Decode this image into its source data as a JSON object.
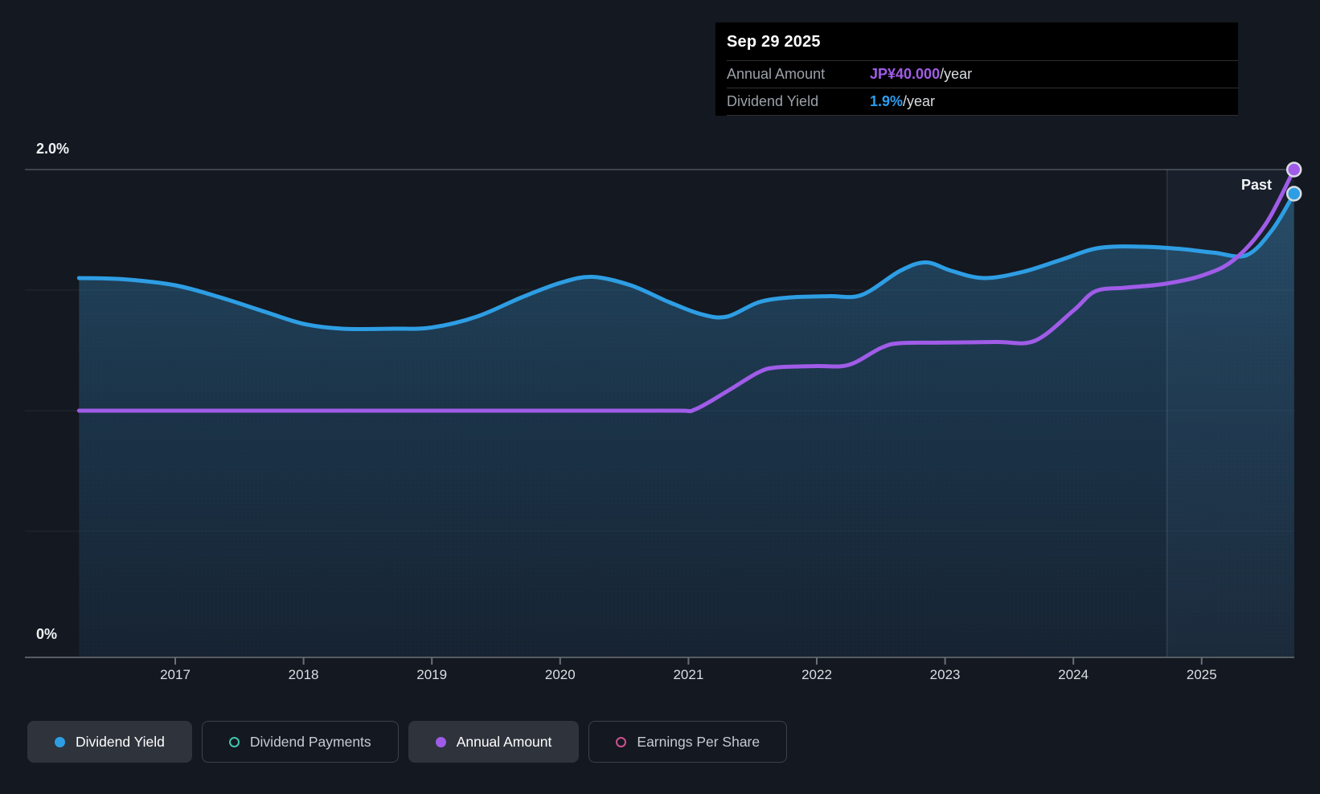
{
  "tooltip": {
    "date": "Sep 29 2025",
    "rows": [
      {
        "label": "Annual Amount",
        "value": "JP¥40.000",
        "suffix": "/year",
        "value_color": "#a25ce8"
      },
      {
        "label": "Dividend Yield",
        "value": "1.9%",
        "suffix": "/year",
        "value_color": "#2b9df0"
      }
    ]
  },
  "axes": {
    "y_top_label": "2.0%",
    "y_bottom_label": "0%",
    "x_ticks": [
      "2017",
      "2018",
      "2019",
      "2020",
      "2021",
      "2022",
      "2023",
      "2024",
      "2025"
    ]
  },
  "past_label": "Past",
  "legend": [
    {
      "label": "Dividend Yield",
      "color": "#2e9ee4",
      "style": "filled",
      "active": true
    },
    {
      "label": "Dividend Payments",
      "color": "#41c4ae",
      "style": "ring",
      "active": false
    },
    {
      "label": "Annual Amount",
      "color": "#a05ce8",
      "style": "filled",
      "active": true
    },
    {
      "label": "Earnings Per Share",
      "color": "#cd5190",
      "style": "ring",
      "active": false
    }
  ],
  "chart_data": {
    "type": "area+line",
    "title": "Dividend yield and annual amount history",
    "x_domain_years": [
      2016.25,
      2025.72
    ],
    "yield_axis": {
      "min": 0,
      "max": 2.0,
      "unit": "%",
      "gridline_step": 0.5,
      "labels": [
        "0%",
        "2.0%"
      ]
    },
    "amount_axis": {
      "min": 0,
      "max": 40,
      "unit": "JP¥/year"
    },
    "past_divider_year": 2024.73,
    "grid": true,
    "legend_position": "bottom",
    "series": [
      {
        "name": "Dividend Yield",
        "axis": "yield",
        "unit": "%",
        "color": "#2e9ee4",
        "area_fill": true,
        "end_value": 1.9,
        "points": [
          [
            2016.25,
            1.55
          ],
          [
            2016.6,
            1.545
          ],
          [
            2017.0,
            1.52
          ],
          [
            2017.35,
            1.47
          ],
          [
            2017.7,
            1.41
          ],
          [
            2018.0,
            1.36
          ],
          [
            2018.3,
            1.34
          ],
          [
            2018.7,
            1.34
          ],
          [
            2019.0,
            1.345
          ],
          [
            2019.35,
            1.39
          ],
          [
            2019.7,
            1.47
          ],
          [
            2020.0,
            1.53
          ],
          [
            2020.25,
            1.555
          ],
          [
            2020.55,
            1.52
          ],
          [
            2020.85,
            1.45
          ],
          [
            2021.1,
            1.4
          ],
          [
            2021.3,
            1.39
          ],
          [
            2021.55,
            1.45
          ],
          [
            2021.8,
            1.47
          ],
          [
            2022.1,
            1.475
          ],
          [
            2022.35,
            1.48
          ],
          [
            2022.65,
            1.58
          ],
          [
            2022.85,
            1.615
          ],
          [
            2023.05,
            1.58
          ],
          [
            2023.3,
            1.55
          ],
          [
            2023.6,
            1.575
          ],
          [
            2023.9,
            1.625
          ],
          [
            2024.2,
            1.675
          ],
          [
            2024.55,
            1.68
          ],
          [
            2024.85,
            1.67
          ],
          [
            2025.1,
            1.655
          ],
          [
            2025.35,
            1.645
          ],
          [
            2025.55,
            1.75
          ],
          [
            2025.72,
            1.9
          ]
        ]
      },
      {
        "name": "Annual Amount",
        "axis": "amount",
        "unit": "JP¥",
        "color": "#a05ce8",
        "area_fill": false,
        "end_value": 40,
        "points": [
          [
            2016.25,
            20
          ],
          [
            2017.0,
            20
          ],
          [
            2018.0,
            20
          ],
          [
            2019.0,
            20
          ],
          [
            2020.0,
            20
          ],
          [
            2020.9,
            20
          ],
          [
            2021.05,
            20.1
          ],
          [
            2021.3,
            21.6
          ],
          [
            2021.55,
            23.2
          ],
          [
            2021.7,
            23.6
          ],
          [
            2022.0,
            23.7
          ],
          [
            2022.25,
            23.8
          ],
          [
            2022.5,
            25.2
          ],
          [
            2022.65,
            25.6
          ],
          [
            2023.0,
            25.65
          ],
          [
            2023.4,
            25.7
          ],
          [
            2023.7,
            25.8
          ],
          [
            2024.0,
            28.3
          ],
          [
            2024.17,
            29.9
          ],
          [
            2024.4,
            30.2
          ],
          [
            2024.7,
            30.5
          ],
          [
            2025.0,
            31.2
          ],
          [
            2025.25,
            32.5
          ],
          [
            2025.5,
            35.5
          ],
          [
            2025.72,
            40
          ]
        ]
      }
    ]
  }
}
